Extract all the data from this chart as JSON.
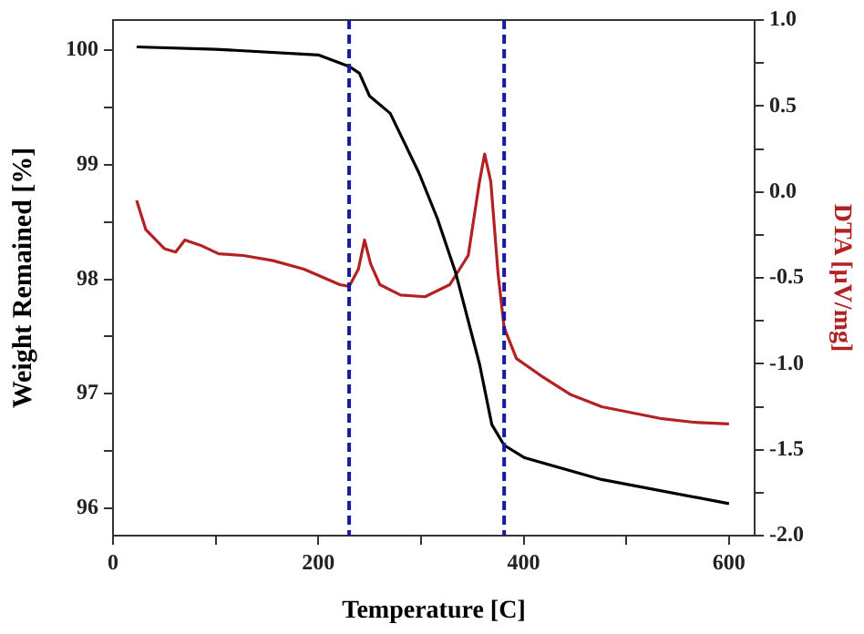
{
  "chart_data": {
    "type": "line",
    "xlabel": "Temperature [C]",
    "ylabel": "Weight Remained [%]",
    "y2label": "DTA [µV/mg]",
    "marker": "none",
    "grid": false,
    "legend": false,
    "xlim": [
      0,
      625
    ],
    "xticks": [
      0,
      {
        "value": 100,
        "label": null
      },
      200,
      {
        "value": 300,
        "label": null
      },
      400,
      {
        "value": 500,
        "label": null
      },
      600
    ],
    "ylim": [
      95.76,
      100.265
    ],
    "yticks": [
      96,
      {
        "value": 96.5,
        "label": null
      },
      97,
      {
        "value": 97.5,
        "label": null
      },
      98,
      {
        "value": 98.5,
        "label": null
      },
      99,
      {
        "value": 99.5,
        "label": null
      },
      100
    ],
    "y2lim": [
      -2,
      1
    ],
    "y2ticks": [
      {
        "value": -2,
        "label": "-2.0"
      },
      {
        "value": -1.75,
        "label": null
      },
      -1.5,
      {
        "value": -1.25,
        "label": null
      },
      {
        "value": -1,
        "label": "-1.0"
      },
      {
        "value": -0.75,
        "label": null
      },
      -0.5,
      {
        "value": -0.25,
        "label": null
      },
      {
        "value": 0,
        "label": "0.0"
      },
      {
        "value": 0.25,
        "label": null
      },
      0.5,
      {
        "value": 0.75,
        "label": null
      },
      {
        "value": 1,
        "label": "1.0"
      }
    ],
    "ref_lines": [
      {
        "axis": "x",
        "value": 230,
        "color": "#1a1a9e",
        "line_style": "dashed"
      },
      {
        "axis": "x",
        "value": 381,
        "color": "#1a1a9e",
        "line_style": "dashed"
      }
    ],
    "series": [
      {
        "color": "#000000",
        "x": [
          23,
          100,
          200,
          230,
          240,
          250,
          270,
          298,
          316,
          334,
          357,
          369,
          381,
          401,
          476,
          600
        ],
        "values": [
          100.03,
          100.01,
          99.96,
          99.86,
          99.8,
          99.6,
          99.45,
          98.93,
          98.53,
          98.05,
          97.26,
          96.73,
          96.55,
          96.44,
          96.25,
          96.04
        ]
      },
      {
        "color": "#b22222",
        "axis": "y2",
        "x": [
          23,
          32,
          50,
          61,
          70,
          85,
          103,
          127,
          156,
          186,
          221,
          230,
          239,
          245,
          251,
          260,
          280,
          304,
          328,
          346,
          357,
          362,
          368,
          375,
          381,
          393,
          417,
          446,
          476,
          535,
          565,
          600
        ],
        "values": [
          -0.05,
          -0.22,
          -0.33,
          -0.35,
          -0.28,
          -0.31,
          -0.36,
          -0.37,
          -0.4,
          -0.45,
          -0.54,
          -0.55,
          -0.45,
          -0.28,
          -0.42,
          -0.54,
          -0.6,
          -0.61,
          -0.54,
          -0.37,
          0.06,
          0.22,
          0.06,
          -0.47,
          -0.79,
          -0.97,
          -1.07,
          -1.18,
          -1.25,
          -1.32,
          -1.34,
          -1.35
        ]
      }
    ]
  }
}
